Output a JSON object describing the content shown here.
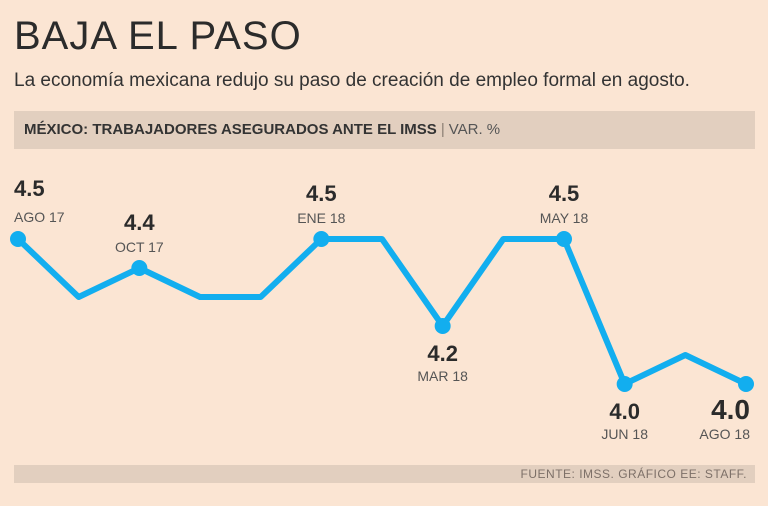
{
  "header": {
    "title": "BAJA EL PASO",
    "subtitle": "La economía mexicana redujo su paso de creación de empleo formal en agosto."
  },
  "band": {
    "label": "MÉXICO: TRABAJADORES ASEGURADOS ANTE EL IMSS",
    "separator": "|",
    "unit": "VAR. %"
  },
  "footer": {
    "source": "FUENTE: IMSS. GRÁFICO EE: STAFF."
  },
  "colors": {
    "line": "#12aeef",
    "background": "#fbe5d3",
    "band": "#e2cfbf"
  },
  "chart_data": {
    "type": "line",
    "title": "MÉXICO: TRABAJADORES ASEGURADOS ANTE EL IMSS",
    "ylabel": "VAR. %",
    "xlabel": "",
    "grid": false,
    "legend": "none",
    "ylim": [
      4.0,
      4.5
    ],
    "series": [
      {
        "values": [
          4.5,
          4.3,
          4.4,
          4.3,
          4.3,
          4.5,
          4.5,
          4.2,
          4.5,
          4.5,
          4.0,
          4.1,
          4.0
        ]
      }
    ],
    "labeled_points": [
      {
        "index": 0,
        "value_label": "4.5",
        "date_label": "AGO 17",
        "position": "above"
      },
      {
        "index": 2,
        "value_label": "4.4",
        "date_label": "OCT 17",
        "position": "above"
      },
      {
        "index": 5,
        "value_label": "4.5",
        "date_label": "ENE 18",
        "position": "above"
      },
      {
        "index": 7,
        "value_label": "4.2",
        "date_label": "MAR 18",
        "position": "below"
      },
      {
        "index": 9,
        "value_label": "4.5",
        "date_label": "MAY 18",
        "position": "above"
      },
      {
        "index": 10,
        "value_label": "4.0",
        "date_label": "JUN 18",
        "position": "below"
      },
      {
        "index": 12,
        "value_label": "4.0",
        "date_label": "AGO 18",
        "position": "below"
      }
    ]
  }
}
